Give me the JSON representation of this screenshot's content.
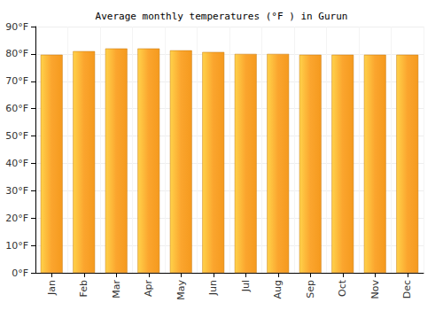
{
  "chart_data": {
    "type": "bar",
    "title": "Average monthly temperatures (°F ) in Gurun",
    "categories": [
      "Jan",
      "Feb",
      "Mar",
      "Apr",
      "May",
      "Jun",
      "Jul",
      "Aug",
      "Sep",
      "Oct",
      "Nov",
      "Dec"
    ],
    "values": [
      79.7,
      81,
      82,
      82,
      81.3,
      80.7,
      80,
      80,
      79.7,
      79.7,
      79.7,
      79.7
    ],
    "color": "#fba52e",
    "ylim": [
      0,
      90
    ],
    "yticks": [
      {
        "value": 0,
        "label": "0°F"
      },
      {
        "value": 10,
        "label": "10°F"
      },
      {
        "value": 20,
        "label": "20°F"
      },
      {
        "value": 30,
        "label": "30°F"
      },
      {
        "value": 40,
        "label": "40°F"
      },
      {
        "value": 50,
        "label": "50°F"
      },
      {
        "value": 60,
        "label": "60°F"
      },
      {
        "value": 70,
        "label": "70°F"
      },
      {
        "value": 80,
        "label": "80°F"
      },
      {
        "value": 90,
        "label": "90°F"
      }
    ],
    "grid": true
  }
}
